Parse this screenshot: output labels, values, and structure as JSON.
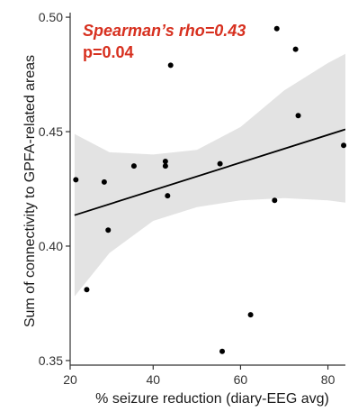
{
  "chart_data": {
    "type": "scatter",
    "xlabel": "% seizure reduction (diary-EEG avg)",
    "ylabel": "Sum of connectivity to GPFA-related areas",
    "xlim": [
      21,
      84
    ],
    "ylim": [
      0.348,
      0.502
    ],
    "xticks": [
      20,
      40,
      60,
      80
    ],
    "yticks": [
      0.35,
      0.4,
      0.45,
      0.5
    ],
    "xtick_labels": [
      "20",
      "40",
      "60",
      "80"
    ],
    "ytick_labels": [
      "0.35",
      "0.40",
      "0.45",
      "0.50"
    ],
    "annotation": {
      "rho_label": "Spearman’s rho",
      "rho_value": "=0.43",
      "p_text": "p=0.04"
    },
    "grid": false,
    "colors": {
      "points": "#000000",
      "fit_line": "#000000",
      "confidence_band": "#e3e3e3",
      "annotation": "#d7301f"
    },
    "points": [
      {
        "x": 22.3,
        "y": 0.429
      },
      {
        "x": 24.8,
        "y": 0.381
      },
      {
        "x": 28.8,
        "y": 0.428
      },
      {
        "x": 29.7,
        "y": 0.407
      },
      {
        "x": 35.6,
        "y": 0.435
      },
      {
        "x": 42.8,
        "y": 0.437
      },
      {
        "x": 42.8,
        "y": 0.435
      },
      {
        "x": 43.3,
        "y": 0.422
      },
      {
        "x": 44.0,
        "y": 0.479
      },
      {
        "x": 55.3,
        "y": 0.436
      },
      {
        "x": 55.8,
        "y": 0.354
      },
      {
        "x": 62.3,
        "y": 0.37
      },
      {
        "x": 67.8,
        "y": 0.42
      },
      {
        "x": 68.3,
        "y": 0.495
      },
      {
        "x": 72.6,
        "y": 0.486
      },
      {
        "x": 73.2,
        "y": 0.457
      },
      {
        "x": 83.6,
        "y": 0.444
      }
    ],
    "fit": {
      "x": [
        22,
        84
      ],
      "y": [
        0.4135,
        0.451
      ]
    },
    "confidence_band": {
      "x": [
        22,
        30,
        40,
        50,
        60,
        70,
        80,
        84
      ],
      "lower": [
        0.378,
        0.397,
        0.411,
        0.417,
        0.42,
        0.421,
        0.42,
        0.419
      ],
      "upper": [
        0.449,
        0.441,
        0.44,
        0.442,
        0.452,
        0.468,
        0.48,
        0.484
      ]
    }
  }
}
